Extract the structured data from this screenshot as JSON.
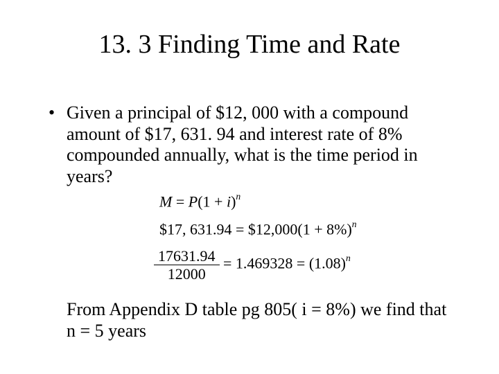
{
  "title": "13. 3 Finding Time and Rate",
  "bullet_marker": "•",
  "problem_text": "Given a principal of $12, 000 with a compound amount of $17, 631. 94 and interest rate of 8% compounded annually, what is the time period in years?",
  "eq1": {
    "M": "M",
    "eq": " = ",
    "P": "P",
    "open": "(1 + ",
    "i": "i",
    "close": ")",
    "n": "n"
  },
  "eq2": {
    "lhs": "$17, 631.94 = $12,000(1 + 8%)",
    "n": "n"
  },
  "eq3": {
    "num": "17631.94",
    "den": "12000",
    "mid": " = 1.469328 = (1.08)",
    "n": "n"
  },
  "conclusion": "From Appendix D table pg 805( i = 8%) we find that n = 5 years"
}
